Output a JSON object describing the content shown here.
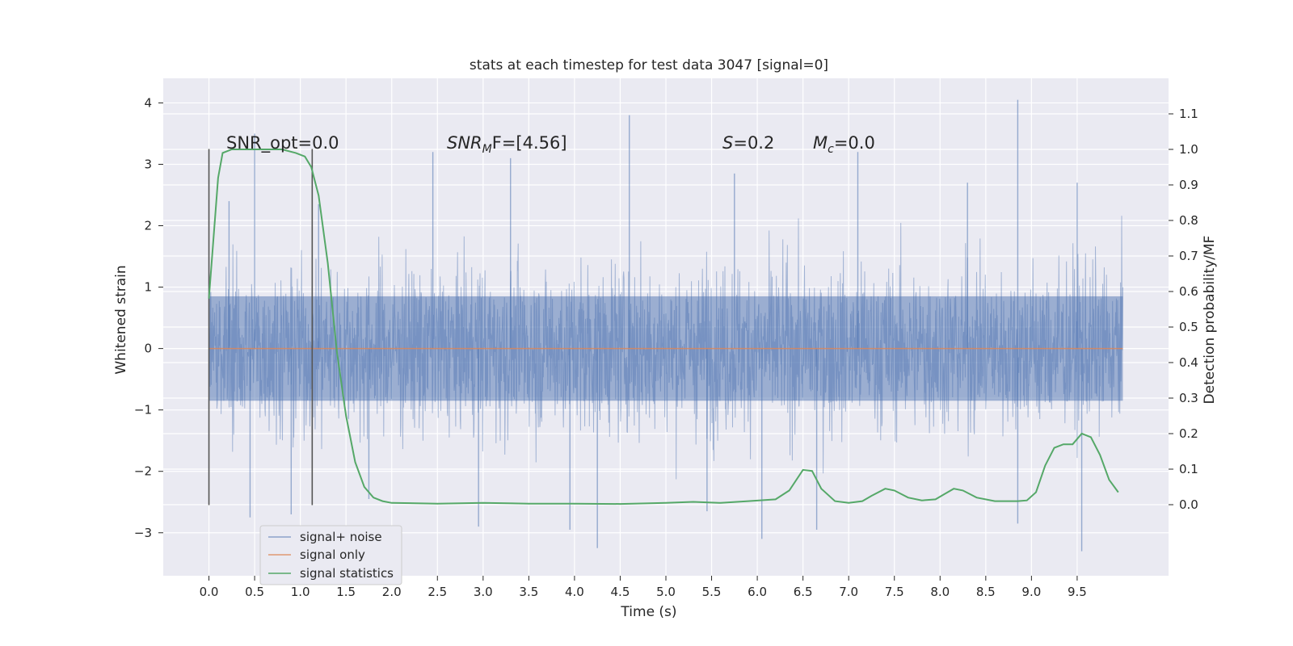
{
  "chart_data": {
    "type": "line",
    "title": "stats at each timestep for test data 3047 [signal=0]",
    "xlabel": "Time (s)",
    "ylabel": "Whitened strain",
    "y2label": "Detection probability/MF",
    "xlim": [
      -0.5,
      10.5
    ],
    "ylim": [
      -3.7,
      4.4
    ],
    "y2lim": [
      -0.2,
      1.2
    ],
    "x_ticks": [
      "0.0",
      "0.5",
      "1.0",
      "1.5",
      "2.0",
      "2.5",
      "3.0",
      "3.5",
      "4.0",
      "4.5",
      "5.0",
      "5.5",
      "6.0",
      "6.5",
      "7.0",
      "7.5",
      "8.0",
      "8.5",
      "9.0",
      "9.5"
    ],
    "y_ticks": [
      "−3",
      "−2",
      "−1",
      "0",
      "1",
      "2",
      "3",
      "4"
    ],
    "y2_ticks": [
      "0.0",
      "0.1",
      "0.2",
      "0.3",
      "0.4",
      "0.5",
      "0.6",
      "0.7",
      "0.8",
      "0.9",
      "1.0",
      "1.1"
    ],
    "grid": true,
    "legend_position": "lower-left",
    "colors": {
      "background": "#eaeaf2",
      "grid": "#ffffff",
      "noise": "#4c72b0",
      "signal": "#dd8452",
      "stats": "#55a868",
      "vline": "#555555"
    },
    "series": [
      {
        "name": "signal+ noise",
        "kind": "noise-band",
        "x_range": [
          0.0,
          10.0
        ],
        "core_band": [
          -0.85,
          0.85
        ],
        "approx_range": [
          -3.3,
          4.05
        ],
        "spikes": [
          [
            0.5,
            3.5
          ],
          [
            0.22,
            2.4
          ],
          [
            1.2,
            2.35
          ],
          [
            2.45,
            3.2
          ],
          [
            4.6,
            3.8
          ],
          [
            3.3,
            3.1
          ],
          [
            5.75,
            2.85
          ],
          [
            7.1,
            3.2
          ],
          [
            8.3,
            2.7
          ],
          [
            8.85,
            4.05
          ],
          [
            9.5,
            2.7
          ],
          [
            0.45,
            -2.75
          ],
          [
            0.9,
            -2.7
          ],
          [
            2.95,
            -2.9
          ],
          [
            3.95,
            -2.95
          ],
          [
            4.25,
            -3.25
          ],
          [
            6.05,
            -3.1
          ],
          [
            6.65,
            -2.95
          ],
          [
            8.85,
            -2.85
          ],
          [
            9.55,
            -3.3
          ],
          [
            1.75,
            -2.45
          ],
          [
            5.45,
            -2.65
          ]
        ]
      },
      {
        "name": "signal only",
        "x": [
          0.0,
          10.0
        ],
        "y": [
          0.0,
          0.0
        ]
      },
      {
        "name": "signal statistics",
        "axis": "right",
        "x": [
          0.0,
          0.1,
          0.15,
          0.25,
          0.4,
          0.6,
          0.8,
          0.95,
          1.05,
          1.12,
          1.2,
          1.3,
          1.4,
          1.5,
          1.6,
          1.7,
          1.8,
          1.9,
          2.0,
          2.5,
          3.0,
          3.5,
          4.0,
          4.5,
          5.0,
          5.3,
          5.6,
          5.9,
          6.2,
          6.35,
          6.5,
          6.6,
          6.7,
          6.85,
          7.0,
          7.15,
          7.25,
          7.4,
          7.5,
          7.65,
          7.8,
          7.95,
          8.05,
          8.15,
          8.25,
          8.4,
          8.6,
          8.85,
          8.95,
          9.05,
          9.15,
          9.25,
          9.35,
          9.45,
          9.55,
          9.65,
          9.75,
          9.85,
          9.95
        ],
        "y": [
          0.58,
          0.92,
          0.99,
          1.0,
          1.0,
          1.0,
          1.0,
          0.99,
          0.98,
          0.95,
          0.87,
          0.68,
          0.43,
          0.25,
          0.12,
          0.05,
          0.02,
          0.01,
          0.005,
          0.003,
          0.005,
          0.003,
          0.003,
          0.002,
          0.005,
          0.008,
          0.005,
          0.01,
          0.015,
          0.04,
          0.098,
          0.095,
          0.045,
          0.01,
          0.005,
          0.01,
          0.025,
          0.045,
          0.04,
          0.02,
          0.012,
          0.015,
          0.03,
          0.045,
          0.04,
          0.02,
          0.01,
          0.01,
          0.012,
          0.035,
          0.11,
          0.16,
          0.17,
          0.17,
          0.2,
          0.19,
          0.14,
          0.07,
          0.035
        ]
      }
    ],
    "vlines": [
      0.0,
      1.13
    ],
    "vline_range_left": [
      -2.55,
      3.25
    ],
    "annotations": {
      "snr_opt": "SNR_opt=0.0",
      "snr_mf_main": "SNR",
      "snr_mf_sub": "M",
      "snr_mf_tail": "F=[4.56]",
      "s_italic": "S",
      "s_tail": "=0.2",
      "mc_main": "M",
      "mc_sub": "c",
      "mc_tail": "=0.0"
    }
  }
}
